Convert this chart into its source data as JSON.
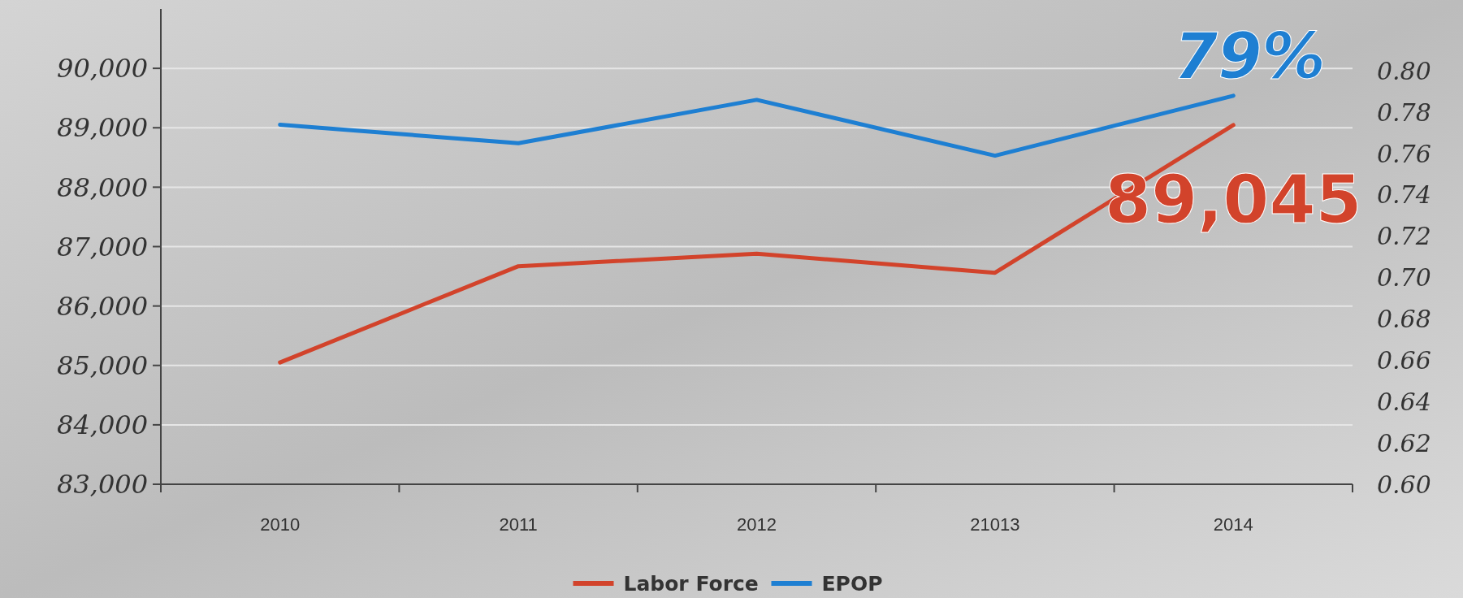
{
  "chart_data": {
    "type": "line",
    "categories": [
      "2010",
      "2011",
      "2012",
      "21013",
      "2014"
    ],
    "series": [
      {
        "name": "Labor Force",
        "color": "#d2432b",
        "values": [
          85050,
          86670,
          86880,
          86560,
          89045
        ]
      },
      {
        "name": "EPOP",
        "color": "#1e7fd2",
        "axis": "y2",
        "values": [
          0.774,
          0.765,
          0.786,
          0.759,
          0.788
        ]
      }
    ],
    "ylim": [
      83000,
      91000
    ],
    "yticks": [
      {
        "value": 83000,
        "label": "83,000"
      },
      {
        "value": 84000,
        "label": "84,000"
      },
      {
        "value": 85000,
        "label": "85,000"
      },
      {
        "value": 86000,
        "label": "86,000"
      },
      {
        "value": 87000,
        "label": "87,000"
      },
      {
        "value": 88000,
        "label": "88,000"
      },
      {
        "value": 89000,
        "label": "89,000"
      },
      {
        "value": 90000,
        "label": "90,000"
      }
    ],
    "y2lim": [
      0.6,
      0.83
    ],
    "y2ticks": [
      {
        "value": 0.6,
        "label": "0.60"
      },
      {
        "value": 0.62,
        "label": "0.62"
      },
      {
        "value": 0.64,
        "label": "0.64"
      },
      {
        "value": 0.66,
        "label": "0.66"
      },
      {
        "value": 0.68,
        "label": "0.68"
      },
      {
        "value": 0.7,
        "label": "0.70"
      },
      {
        "value": 0.72,
        "label": "0.72"
      },
      {
        "value": 0.74,
        "label": "0.74"
      },
      {
        "value": 0.76,
        "label": "0.76"
      },
      {
        "value": 0.78,
        "label": "0.78"
      },
      {
        "value": 0.8,
        "label": "0.80"
      }
    ],
    "annotations": [
      {
        "text": "89,045",
        "x": "2014",
        "y": 89045
      },
      "79%"
    ],
    "grid": "y",
    "legend": "bottom",
    "marker": "none",
    "line_style": "solid"
  }
}
